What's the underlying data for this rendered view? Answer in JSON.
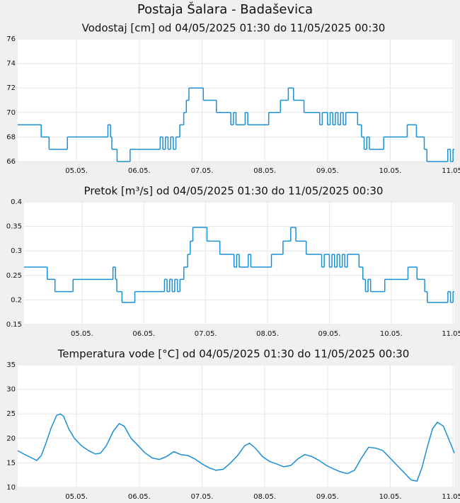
{
  "title": "Postaja Šalara - Badaševica",
  "chart_data": [
    {
      "type": "line",
      "step": "post",
      "title": "Vodostaj [cm] od 04/05/2025 01:30 do 11/05/2025 00:30",
      "color": "#1a8fd6",
      "grid": true,
      "x": [
        1.5,
        10.5,
        13.5,
        20.5,
        36,
        37,
        37.5,
        39.5,
        44.5,
        56,
        57,
        58,
        59,
        60,
        61,
        62,
        63.5,
        65,
        66,
        67,
        72.5,
        77.5,
        83,
        84,
        85,
        88.5,
        89.5,
        97.5,
        102,
        105,
        107,
        111,
        117,
        118,
        120,
        121,
        122,
        123,
        124,
        125,
        126,
        127,
        131.5,
        133,
        134,
        135,
        136,
        141.5,
        150.5,
        154,
        157,
        158,
        166,
        167,
        168
      ],
      "values": [
        69,
        68,
        67,
        68,
        69,
        68,
        67,
        66,
        67,
        68,
        67,
        68,
        67,
        68,
        67,
        68,
        69,
        70,
        71,
        72,
        71,
        70,
        69,
        70,
        69,
        70,
        69,
        70,
        71,
        72,
        71,
        70,
        69,
        70,
        69,
        70,
        69,
        70,
        69,
        70,
        69,
        70,
        69,
        68,
        67,
        68,
        67,
        68,
        69,
        68,
        67,
        66,
        67,
        66,
        67
      ],
      "xlim": [
        1.5,
        168.5
      ],
      "xticks": [
        {
          "value": 24,
          "label": "05.05."
        },
        {
          "value": 48,
          "label": "06.05."
        },
        {
          "value": 72,
          "label": "07.05."
        },
        {
          "value": 96,
          "label": "08.05."
        },
        {
          "value": 120,
          "label": "09.05."
        },
        {
          "value": 144,
          "label": "10.05."
        },
        {
          "value": 168,
          "label": "11.05."
        }
      ],
      "ylim": [
        66,
        76
      ],
      "yticks": [
        66,
        68,
        70,
        72,
        74,
        76
      ]
    },
    {
      "type": "line",
      "step": "post",
      "title": "Pretok [m³/s] od 04/05/2025 01:30 do 11/05/2025 00:30",
      "color": "#1a8fd6",
      "grid": true,
      "x": [
        1.5,
        10.5,
        13.5,
        20.5,
        36,
        37,
        37.5,
        39.5,
        44.5,
        56,
        57,
        58,
        59,
        60,
        61,
        62,
        63.5,
        65,
        66,
        67,
        72.5,
        77.5,
        83,
        84,
        85,
        88.5,
        89.5,
        97.5,
        102,
        105,
        107,
        111,
        117,
        118,
        120,
        121,
        122,
        123,
        124,
        125,
        126,
        127,
        131.5,
        133,
        134,
        135,
        136,
        141.5,
        150.5,
        154,
        157,
        158,
        166,
        167,
        168
      ],
      "values": [
        0.267,
        0.242,
        0.217,
        0.242,
        0.267,
        0.242,
        0.217,
        0.195,
        0.217,
        0.242,
        0.217,
        0.242,
        0.217,
        0.242,
        0.217,
        0.242,
        0.267,
        0.293,
        0.32,
        0.348,
        0.32,
        0.293,
        0.267,
        0.293,
        0.267,
        0.293,
        0.267,
        0.293,
        0.32,
        0.348,
        0.32,
        0.293,
        0.267,
        0.293,
        0.267,
        0.293,
        0.267,
        0.293,
        0.267,
        0.293,
        0.267,
        0.293,
        0.267,
        0.242,
        0.217,
        0.242,
        0.217,
        0.242,
        0.267,
        0.242,
        0.217,
        0.195,
        0.217,
        0.195,
        0.217
      ],
      "xlim": [
        1.5,
        168.5
      ],
      "xticks": [
        {
          "value": 24,
          "label": "05.05."
        },
        {
          "value": 48,
          "label": "06.05."
        },
        {
          "value": 72,
          "label": "07.05."
        },
        {
          "value": 96,
          "label": "08.05."
        },
        {
          "value": 120,
          "label": "09.05."
        },
        {
          "value": 144,
          "label": "10.05."
        },
        {
          "value": 168,
          "label": "11.05."
        }
      ],
      "ylim": [
        0.15,
        0.4
      ],
      "yticks": [
        0.15,
        0.2,
        0.25,
        0.3,
        0.35,
        0.4
      ]
    },
    {
      "type": "line",
      "title": "Temperatura vode [°C] od 04/05/2025 01:30 do 11/05/2025 00:30",
      "color": "#1a8fd6",
      "grid": true,
      "x": [
        1.5,
        4.2,
        6.9,
        8.8,
        10.5,
        12.3,
        14.2,
        16.4,
        17.8,
        19.1,
        21,
        23.2,
        25.9,
        28.6,
        31.3,
        33.2,
        35.4,
        38.1,
        40.3,
        42.2,
        44.9,
        47.6,
        50.3,
        53,
        55.7,
        58.4,
        61.2,
        63.9,
        66.6,
        69.3,
        72,
        74.7,
        77.4,
        80.1,
        82.9,
        85.6,
        88.3,
        90.2,
        92.4,
        95.1,
        97.8,
        100.5,
        103.2,
        106,
        108.6,
        111.3,
        114,
        116.8,
        119.5,
        122.2,
        124.9,
        127.6,
        130.3,
        133,
        135.7,
        138.5,
        141.2,
        143.9,
        146.6,
        149.3,
        152,
        154.2,
        156.1,
        158.3,
        160.2,
        162,
        164.3,
        167,
        168.5
      ],
      "values": [
        17.5,
        16.7,
        16,
        15.5,
        16.5,
        19,
        22,
        24.7,
        25,
        24.5,
        22,
        20,
        18.5,
        17.5,
        16.8,
        17,
        18.5,
        21.5,
        23,
        22.5,
        20,
        18.5,
        17,
        16,
        15.7,
        16.3,
        17.3,
        16.7,
        16.5,
        15.8,
        14.8,
        14,
        13.5,
        13.7,
        15,
        16.5,
        18.5,
        19,
        18,
        16.3,
        15.3,
        14.8,
        14.2,
        14.5,
        15.8,
        16.7,
        16.3,
        15.5,
        14.5,
        13.8,
        13.2,
        12.8,
        13.5,
        16,
        18.2,
        18,
        17.5,
        16,
        14.5,
        13,
        11.5,
        11.3,
        14,
        18.5,
        22,
        23.3,
        22.5,
        19,
        17
      ],
      "xlim": [
        1.5,
        168.5
      ],
      "xticks": [
        {
          "value": 24,
          "label": "05.05."
        },
        {
          "value": 48,
          "label": "06.05."
        },
        {
          "value": 72,
          "label": "07.05."
        },
        {
          "value": 96,
          "label": "08.05."
        },
        {
          "value": 120,
          "label": "09.05."
        },
        {
          "value": 144,
          "label": "10.05."
        },
        {
          "value": 168,
          "label": "11.05."
        }
      ],
      "ylim": [
        10,
        35
      ],
      "yticks": [
        10,
        15,
        20,
        25,
        30,
        35
      ]
    }
  ]
}
